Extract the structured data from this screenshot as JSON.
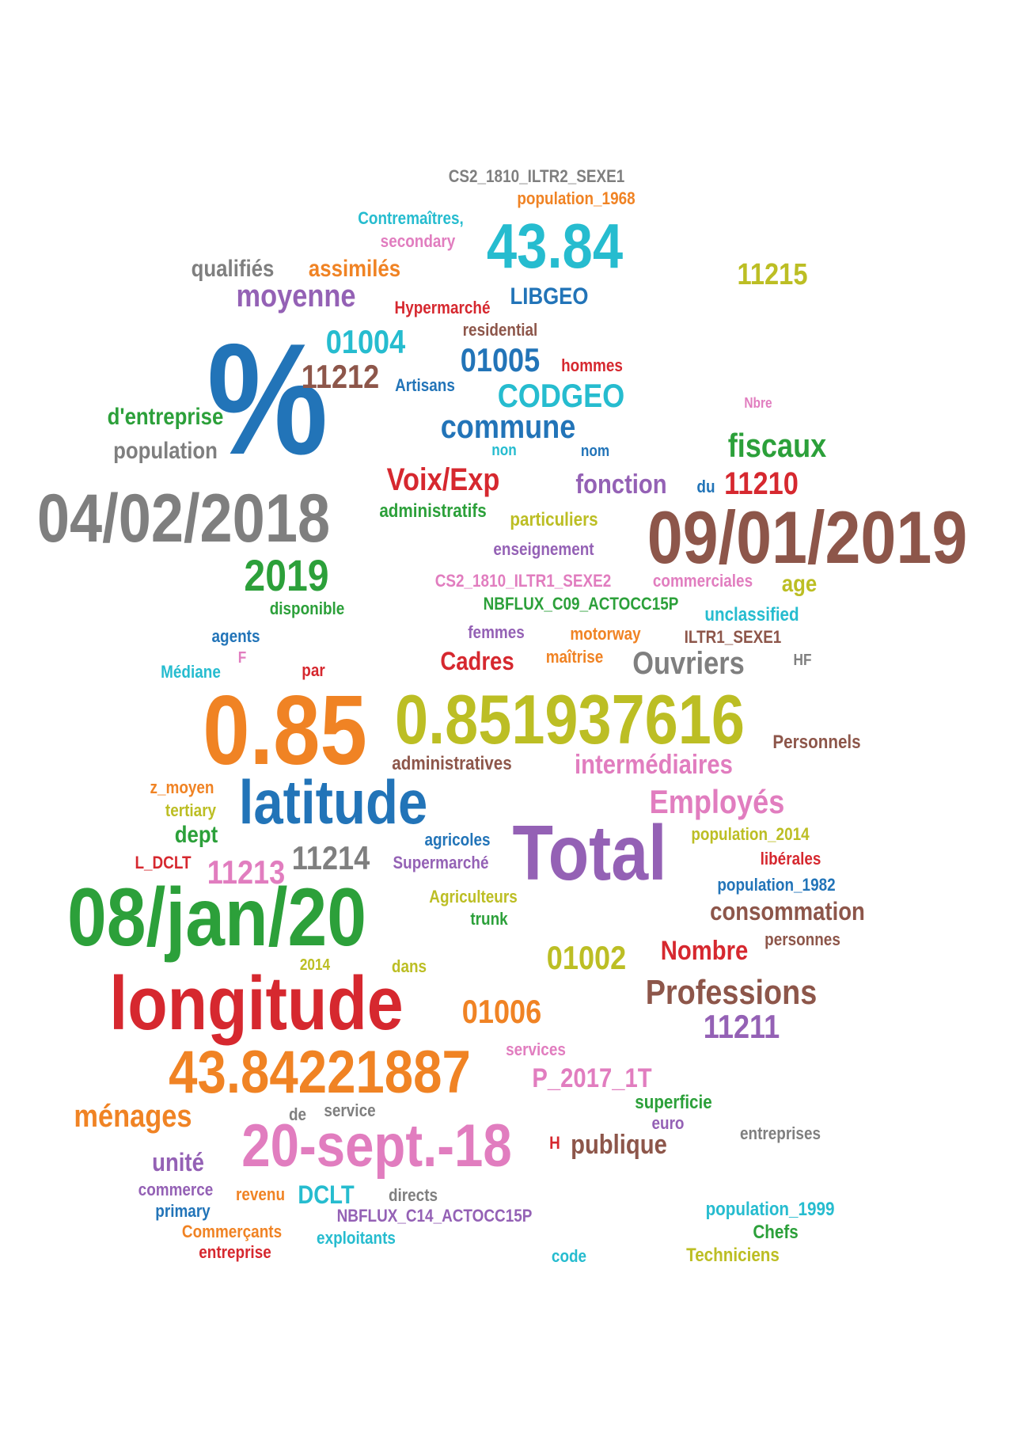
{
  "palette": {
    "blue": "#2274b8",
    "orange": "#f08324",
    "green": "#2ca03a",
    "red": "#d6282f",
    "purple": "#9461b5",
    "brown": "#8d564a",
    "pink": "#e17dbf",
    "gray": "#7f7f7f",
    "olive": "#bcbe24",
    "cyan": "#26bccf",
    "background": "#ffffff"
  },
  "words": [
    {
      "text": "CS2_1810_ILTR2_SEXE1",
      "color": "gray"
    },
    {
      "text": "population_1968",
      "color": "orange"
    },
    {
      "text": "Contremaîtres,",
      "color": "cyan"
    },
    {
      "text": "secondary",
      "color": "pink"
    },
    {
      "text": "43.84",
      "color": "cyan"
    },
    {
      "text": "11215",
      "color": "olive"
    },
    {
      "text": "qualifiés",
      "color": "gray"
    },
    {
      "text": "assimilés",
      "color": "orange"
    },
    {
      "text": "moyenne",
      "color": "purple"
    },
    {
      "text": "LIBGEO",
      "color": "blue"
    },
    {
      "text": "Hypermarché",
      "color": "red"
    },
    {
      "text": "residential",
      "color": "brown"
    },
    {
      "text": "%",
      "color": "blue"
    },
    {
      "text": "01004",
      "color": "cyan"
    },
    {
      "text": "01005",
      "color": "blue"
    },
    {
      "text": "hommes",
      "color": "red"
    },
    {
      "text": "11212",
      "color": "brown"
    },
    {
      "text": "Artisans",
      "color": "blue"
    },
    {
      "text": "CODGEO",
      "color": "cyan"
    },
    {
      "text": "Nbre",
      "color": "pink"
    },
    {
      "text": "d'entreprise",
      "color": "green"
    },
    {
      "text": "commune",
      "color": "blue"
    },
    {
      "text": "population",
      "color": "gray"
    },
    {
      "text": "non",
      "color": "cyan"
    },
    {
      "text": "nom",
      "color": "blue"
    },
    {
      "text": "fiscaux",
      "color": "green"
    },
    {
      "text": "Voix/Exp",
      "color": "red"
    },
    {
      "text": "fonction",
      "color": "purple"
    },
    {
      "text": "du",
      "color": "blue"
    },
    {
      "text": "11210",
      "color": "red"
    },
    {
      "text": "04/02/2018",
      "color": "gray"
    },
    {
      "text": "administratifs",
      "color": "green"
    },
    {
      "text": "particuliers",
      "color": "olive"
    },
    {
      "text": "09/01/2019",
      "color": "brown"
    },
    {
      "text": "enseignement",
      "color": "purple"
    },
    {
      "text": "2019",
      "color": "green"
    },
    {
      "text": "CS2_1810_ILTR1_SEXE2",
      "color": "pink"
    },
    {
      "text": "commerciales",
      "color": "pink"
    },
    {
      "text": "age",
      "color": "olive"
    },
    {
      "text": "NBFLUX_C09_ACTOCC15P",
      "color": "green"
    },
    {
      "text": "disponible",
      "color": "green"
    },
    {
      "text": "unclassified",
      "color": "cyan"
    },
    {
      "text": "agents",
      "color": "blue"
    },
    {
      "text": "femmes",
      "color": "purple"
    },
    {
      "text": "motorway",
      "color": "orange"
    },
    {
      "text": "ILTR1_SEXE1",
      "color": "brown"
    },
    {
      "text": "F",
      "color": "pink"
    },
    {
      "text": "Médiane",
      "color": "cyan"
    },
    {
      "text": "par",
      "color": "red"
    },
    {
      "text": "Cadres",
      "color": "red"
    },
    {
      "text": "maîtrise",
      "color": "orange"
    },
    {
      "text": "Ouvriers",
      "color": "gray"
    },
    {
      "text": "HF",
      "color": "gray"
    },
    {
      "text": "0.85",
      "color": "orange"
    },
    {
      "text": "0.851937616",
      "color": "olive"
    },
    {
      "text": "Personnels",
      "color": "brown"
    },
    {
      "text": "administratives",
      "color": "brown"
    },
    {
      "text": "intermédiaires",
      "color": "pink"
    },
    {
      "text": "z_moyen",
      "color": "orange"
    },
    {
      "text": "latitude",
      "color": "blue"
    },
    {
      "text": "Employés",
      "color": "pink"
    },
    {
      "text": "tertiary",
      "color": "olive"
    },
    {
      "text": "dept",
      "color": "green"
    },
    {
      "text": "population_2014",
      "color": "olive"
    },
    {
      "text": "L_DCLT",
      "color": "red"
    },
    {
      "text": "11213",
      "color": "pink"
    },
    {
      "text": "11214",
      "color": "gray"
    },
    {
      "text": "agricoles",
      "color": "blue"
    },
    {
      "text": "Supermarché",
      "color": "purple"
    },
    {
      "text": "Total",
      "color": "purple"
    },
    {
      "text": "libérales",
      "color": "red"
    },
    {
      "text": "population_1982",
      "color": "blue"
    },
    {
      "text": "08/jan/20",
      "color": "green"
    },
    {
      "text": "Agriculteurs",
      "color": "olive"
    },
    {
      "text": "trunk",
      "color": "green"
    },
    {
      "text": "consommation",
      "color": "brown"
    },
    {
      "text": "personnes",
      "color": "brown"
    },
    {
      "text": "01002",
      "color": "olive"
    },
    {
      "text": "Nombre",
      "color": "red"
    },
    {
      "text": "2014",
      "color": "olive"
    },
    {
      "text": "dans",
      "color": "olive"
    },
    {
      "text": "longitude",
      "color": "red"
    },
    {
      "text": "Professions",
      "color": "brown"
    },
    {
      "text": "01006",
      "color": "orange"
    },
    {
      "text": "11211",
      "color": "purple"
    },
    {
      "text": "services",
      "color": "pink"
    },
    {
      "text": "43.84221887",
      "color": "orange"
    },
    {
      "text": "P_2017_1T",
      "color": "pink"
    },
    {
      "text": "superficie",
      "color": "green"
    },
    {
      "text": "ménages",
      "color": "orange"
    },
    {
      "text": "de",
      "color": "gray"
    },
    {
      "text": "service",
      "color": "gray"
    },
    {
      "text": "euro",
      "color": "purple"
    },
    {
      "text": "entreprises",
      "color": "gray"
    },
    {
      "text": "20-sept.-18",
      "color": "pink"
    },
    {
      "text": "H",
      "color": "red"
    },
    {
      "text": "publique",
      "color": "brown"
    },
    {
      "text": "unité",
      "color": "purple"
    },
    {
      "text": "commerce",
      "color": "purple"
    },
    {
      "text": "revenu",
      "color": "orange"
    },
    {
      "text": "DCLT",
      "color": "cyan"
    },
    {
      "text": "directs",
      "color": "gray"
    },
    {
      "text": "primary",
      "color": "blue"
    },
    {
      "text": "NBFLUX_C14_ACTOCC15P",
      "color": "purple"
    },
    {
      "text": "population_1999",
      "color": "cyan"
    },
    {
      "text": "Commerçants",
      "color": "orange"
    },
    {
      "text": "exploitants",
      "color": "cyan"
    },
    {
      "text": "Chefs",
      "color": "green"
    },
    {
      "text": "entreprise",
      "color": "red"
    },
    {
      "text": "code",
      "color": "cyan"
    },
    {
      "text": "Techniciens",
      "color": "olive"
    }
  ]
}
